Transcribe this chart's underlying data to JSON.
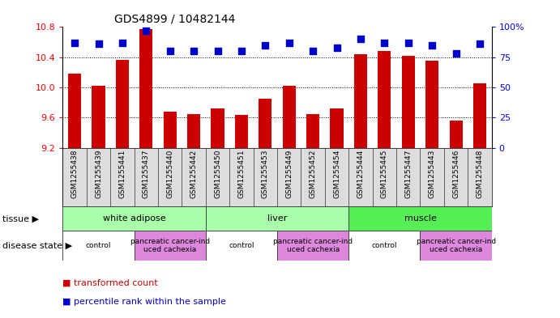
{
  "title": "GDS4899 / 10482144",
  "samples": [
    "GSM1255438",
    "GSM1255439",
    "GSM1255441",
    "GSM1255437",
    "GSM1255440",
    "GSM1255442",
    "GSM1255450",
    "GSM1255451",
    "GSM1255453",
    "GSM1255449",
    "GSM1255452",
    "GSM1255454",
    "GSM1255444",
    "GSM1255445",
    "GSM1255447",
    "GSM1255443",
    "GSM1255446",
    "GSM1255448"
  ],
  "bar_values": [
    10.18,
    10.02,
    10.36,
    10.77,
    9.68,
    9.65,
    9.72,
    9.64,
    9.85,
    10.02,
    9.65,
    9.72,
    10.44,
    10.48,
    10.42,
    10.35,
    9.56,
    10.05
  ],
  "percentile_values": [
    87,
    86,
    87,
    97,
    80,
    80,
    80,
    80,
    85,
    87,
    80,
    83,
    90,
    87,
    87,
    85,
    78,
    86
  ],
  "ylim_left": [
    9.2,
    10.8
  ],
  "ylim_right": [
    0,
    100
  ],
  "yticks_left": [
    9.2,
    9.6,
    10.0,
    10.4,
    10.8
  ],
  "yticks_right": [
    0,
    25,
    50,
    75,
    100
  ],
  "bar_color": "#cc0000",
  "dot_color": "#0000cc",
  "dot_size": 28,
  "tissue_groups": [
    {
      "label": "white adipose",
      "start": 0,
      "end": 6,
      "color": "#aaffaa"
    },
    {
      "label": "liver",
      "start": 6,
      "end": 12,
      "color": "#aaffaa"
    },
    {
      "label": "muscle",
      "start": 12,
      "end": 18,
      "color": "#55ee55"
    }
  ],
  "disease_groups": [
    {
      "label": "control",
      "start": 0,
      "end": 3,
      "color": "#ffffff"
    },
    {
      "label": "pancreatic cancer-ind\nuced cachexia",
      "start": 3,
      "end": 6,
      "color": "#dd88dd"
    },
    {
      "label": "control",
      "start": 6,
      "end": 9,
      "color": "#ffffff"
    },
    {
      "label": "pancreatic cancer-ind\nuced cachexia",
      "start": 9,
      "end": 12,
      "color": "#dd88dd"
    },
    {
      "label": "control",
      "start": 12,
      "end": 15,
      "color": "#ffffff"
    },
    {
      "label": "pancreatic cancer-ind\nuced cachexia",
      "start": 15,
      "end": 18,
      "color": "#dd88dd"
    }
  ],
  "legend_bar_label": "transformed count",
  "legend_dot_label": "percentile rank within the sample",
  "tissue_label": "tissue",
  "disease_label": "disease state",
  "xticklabel_bg": "#dddddd",
  "spine_color": "#000000",
  "label_arrow": "▶"
}
